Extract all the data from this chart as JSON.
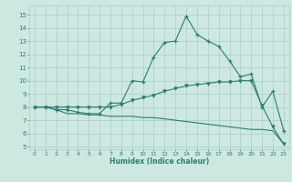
{
  "xlabel": "Humidex (Indice chaleur)",
  "x_ticks": [
    0,
    1,
    2,
    3,
    4,
    5,
    6,
    7,
    8,
    9,
    10,
    11,
    12,
    13,
    14,
    15,
    16,
    17,
    18,
    19,
    20,
    21,
    22,
    23
  ],
  "y_ticks": [
    5,
    6,
    7,
    8,
    9,
    10,
    11,
    12,
    13,
    14,
    15
  ],
  "ylim": [
    4.8,
    15.7
  ],
  "xlim": [
    -0.5,
    23.5
  ],
  "bg_color": "#cce8e0",
  "grid_color": "#aacccc",
  "line_color": "#2e7d6e",
  "line1_x": [
    0,
    1,
    2,
    3,
    4,
    5,
    6,
    7,
    8,
    9,
    10,
    11,
    12,
    13,
    14,
    15,
    16,
    17,
    18,
    19,
    20,
    21,
    22,
    23
  ],
  "line1_y": [
    8.0,
    8.0,
    7.8,
    7.8,
    7.6,
    7.5,
    7.5,
    8.3,
    8.3,
    10.0,
    9.9,
    11.8,
    12.9,
    13.0,
    14.9,
    13.5,
    13.0,
    12.6,
    11.5,
    10.3,
    10.5,
    8.0,
    9.2,
    6.2
  ],
  "line2_x": [
    0,
    1,
    2,
    3,
    4,
    5,
    6,
    7,
    8,
    9,
    10,
    11,
    12,
    13,
    14,
    15,
    16,
    17,
    18,
    19,
    20,
    21,
    22,
    23
  ],
  "line2_y": [
    8.0,
    8.0,
    8.0,
    8.0,
    8.0,
    8.0,
    8.0,
    8.0,
    8.2,
    8.5,
    8.7,
    8.9,
    9.2,
    9.4,
    9.6,
    9.7,
    9.8,
    9.9,
    9.9,
    10.0,
    10.0,
    8.1,
    6.5,
    5.2
  ],
  "line3_x": [
    0,
    1,
    2,
    3,
    4,
    5,
    6,
    7,
    8,
    9,
    10,
    11,
    12,
    13,
    14,
    15,
    16,
    17,
    18,
    19,
    20,
    21,
    22,
    23
  ],
  "line3_y": [
    8.0,
    8.0,
    7.8,
    7.5,
    7.5,
    7.4,
    7.4,
    7.3,
    7.3,
    7.3,
    7.2,
    7.2,
    7.1,
    7.0,
    6.9,
    6.8,
    6.7,
    6.6,
    6.5,
    6.4,
    6.3,
    6.3,
    6.2,
    5.2
  ]
}
